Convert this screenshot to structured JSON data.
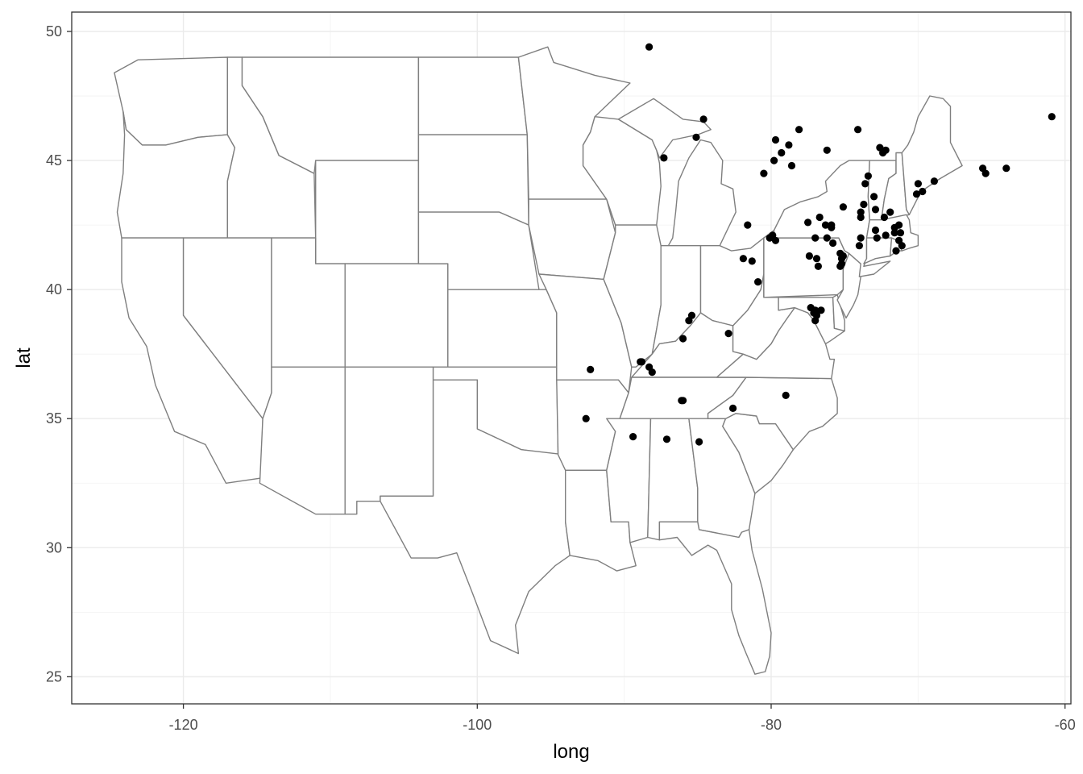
{
  "chart_data": {
    "type": "scatter",
    "title": "",
    "xlabel": "long",
    "ylabel": "lat",
    "xlim": [
      -127.6,
      -59.6
    ],
    "ylim": [
      23.95,
      50.75
    ],
    "x_ticks": [
      -120,
      -100,
      -80,
      -60
    ],
    "x_tick_labels": [
      "-120",
      "-100",
      "-80",
      "-60"
    ],
    "y_ticks": [
      25,
      30,
      35,
      40,
      45,
      50
    ],
    "y_tick_labels": [
      "25",
      "30",
      "35",
      "40",
      "45",
      "50"
    ],
    "grid": true,
    "background_layer": "contiguous US state boundaries (white fill, grey outline)",
    "point_color": "#000000",
    "state_outline_color": "#7f7f7f",
    "series": [
      {
        "x": [
          -88.3,
          -84.6,
          -85.1,
          -87.3,
          -79.7,
          -79.3,
          -79.8,
          -78.8,
          -78.1,
          -78.6,
          -76.2,
          -80.5,
          -74.1,
          -72.4,
          -72.2,
          -72.6,
          -73.4,
          -73.6,
          -73.0,
          -72.9,
          -72.3,
          -71.6,
          -71.3,
          -71.2,
          -70.1,
          -70.0,
          -69.7,
          -68.9,
          -73.7,
          -73.9,
          -73.9,
          -72.9,
          -72.8,
          -72.2,
          -71.5,
          -71.3,
          -71.1,
          -71.6,
          -71.9,
          -73.9,
          -74.0,
          -75.1,
          -76.3,
          -76.7,
          -76.8,
          -76.9,
          -77.4,
          -79.9,
          -80.1,
          -79.7,
          -77.0,
          -77.5,
          -75.9,
          -75.9,
          -75.8,
          -75.3,
          -75.2,
          -75.2,
          -75.3,
          -75.1,
          -77.0,
          -76.6,
          -76.9,
          -77.0,
          -77.3,
          -77.1,
          -76.2,
          -80.9,
          -81.3,
          -81.9,
          -81.6,
          -85.4,
          -85.6,
          -86.0,
          -82.9,
          -86.1,
          -92.3,
          -88.9,
          -88.8,
          -88.3,
          -88.1,
          -92.6,
          -89.4,
          -87.1,
          -86.0,
          -84.9,
          -82.6,
          -79.0,
          -65.6,
          -65.4,
          -64.0,
          -60.9
        ],
        "y": [
          49.4,
          46.6,
          45.9,
          45.1,
          45.8,
          45.3,
          45.0,
          45.6,
          46.2,
          44.8,
          45.4,
          44.5,
          46.2,
          45.3,
          45.4,
          45.5,
          44.4,
          44.1,
          43.6,
          43.1,
          42.8,
          42.4,
          42.5,
          42.2,
          43.7,
          44.1,
          43.8,
          44.2,
          43.3,
          43.0,
          42.0,
          42.3,
          42.0,
          42.1,
          41.5,
          41.9,
          41.7,
          42.2,
          43.0,
          42.8,
          41.7,
          43.2,
          42.5,
          42.8,
          40.9,
          41.2,
          41.3,
          42.1,
          42.0,
          41.9,
          42.0,
          42.6,
          42.5,
          42.4,
          41.8,
          41.4,
          41.2,
          41.0,
          40.9,
          41.3,
          39.2,
          39.2,
          39.0,
          38.8,
          39.3,
          39.1,
          42.0,
          40.3,
          41.1,
          41.2,
          42.5,
          39.0,
          38.8,
          38.1,
          38.3,
          35.7,
          36.9,
          37.2,
          37.2,
          37.0,
          36.8,
          35.0,
          34.3,
          34.2,
          35.7,
          34.1,
          35.4,
          35.9,
          44.7,
          44.5,
          44.7,
          46.7
        ]
      }
    ]
  }
}
